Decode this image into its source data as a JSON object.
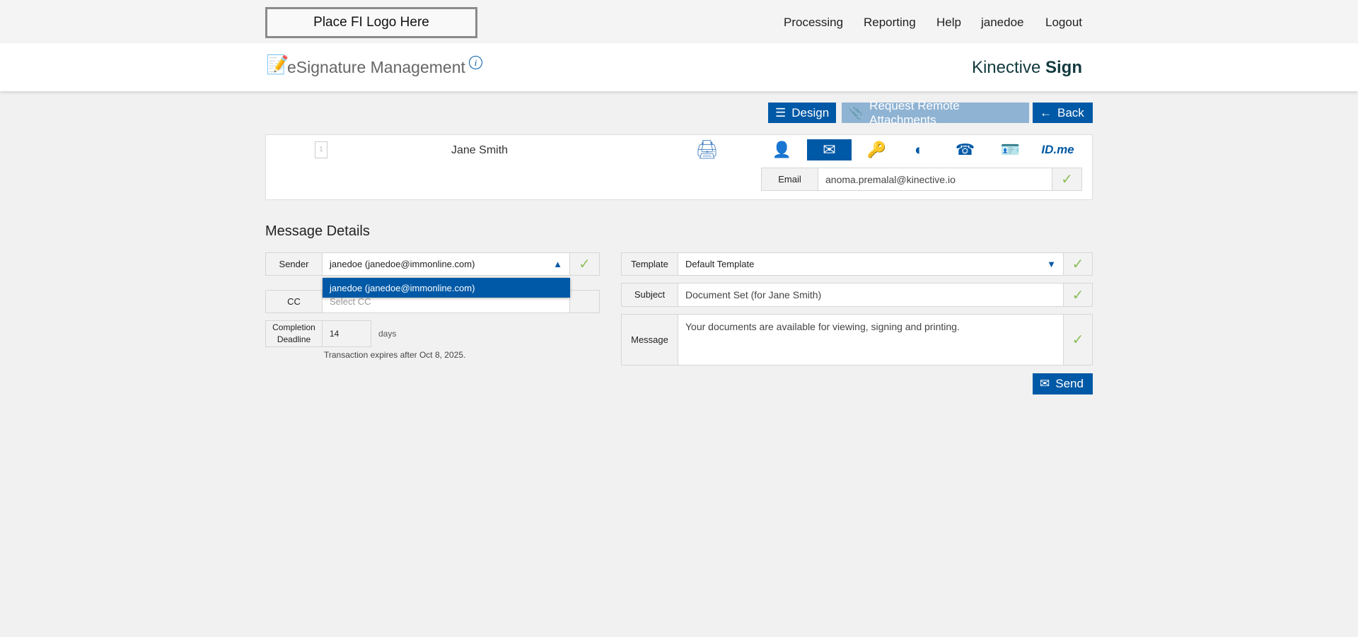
{
  "topbar": {
    "logo": "Place FI Logo Here",
    "nav": [
      "Processing",
      "Reporting",
      "Help",
      "janedoe",
      "Logout"
    ]
  },
  "header": {
    "title": "eSignature Management",
    "brand_light": "Kinective",
    "brand_bold": "Sign"
  },
  "toolbar": {
    "design": "Design",
    "request": "Request Remote Attachments",
    "back": "Back"
  },
  "signer": {
    "name": "Jane Smith",
    "page_count": "1",
    "auth_methods": [
      "person-icon",
      "email-icon",
      "key-icon",
      "shield-question-icon",
      "phone-icon",
      "id-card-icon",
      "idme-logo"
    ],
    "active_method": "email-icon",
    "idme": "ID.me",
    "email_label": "Email",
    "email_value": "anoma.premalal@kinective.io"
  },
  "message": {
    "heading": "Message Details",
    "sender_label": "Sender",
    "sender_value": "janedoe (janedoe@immonline.com)",
    "sender_options": [
      "janedoe (janedoe@immonline.com)"
    ],
    "cc_label": "CC",
    "cc_placeholder": "Select CC",
    "deadline_label": "Completion Deadline",
    "deadline_value": "14",
    "deadline_unit": "days",
    "expires": "Transaction expires after Oct 8, 2025.",
    "template_label": "Template",
    "template_value": "Default Template",
    "subject_label": "Subject",
    "subject_value": "Document Set (for Jane Smith)",
    "message_label": "Message",
    "message_value": "Your documents are available for viewing, signing and printing.",
    "send": "Send"
  },
  "colors": {
    "primary": "#0059a6",
    "disabled": "#8fb3d3",
    "check": "#8cbf5a"
  }
}
